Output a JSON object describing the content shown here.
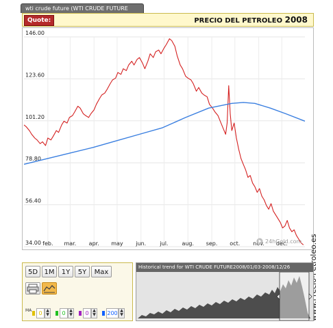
{
  "tab_label": "wti crude future (WTI CRUDE FUTURE",
  "quote_label": "Quote:",
  "page_title": "PRECIO DEL PETROLEO",
  "page_year": "2008",
  "watermark": "24hGold.com",
  "side_label": "www.Precio-Petroleo.es",
  "period_buttons": [
    "5D",
    "1M",
    "1Y",
    "5Y",
    "Max"
  ],
  "indicators": {
    "row_label": "MA",
    "values": [
      "0",
      "0",
      "0",
      "200"
    ],
    "colors": [
      "#e0c000",
      "#20c020",
      "#a020c0",
      "#1060ff"
    ]
  },
  "history": {
    "title": "Historical trend for WTI CRUDE FUTURE",
    "range": "2008/01/03-2008/12/26"
  },
  "chart_data": {
    "type": "line",
    "title": "PRECIO DEL PETROLEO 2008",
    "xlabel": "",
    "ylabel": "",
    "x_ticks": [
      "feb.",
      "mar.",
      "apr.",
      "may",
      "jun.",
      "jul.",
      "aug.",
      "sep.",
      "oct.",
      "nov.",
      "dec."
    ],
    "x_tick_days": [
      31,
      60,
      91,
      121,
      152,
      182,
      213,
      244,
      274,
      305,
      335
    ],
    "y_ticks": [
      34.0,
      56.4,
      78.8,
      101.2,
      123.6,
      146.0
    ],
    "ylim": [
      34.0,
      146.0
    ],
    "xlim": [
      0,
      365
    ],
    "grid": true,
    "series": [
      {
        "color": "#d42020",
        "x": [
          0,
          3,
          7,
          10,
          14,
          17,
          21,
          24,
          28,
          31,
          35,
          38,
          42,
          45,
          49,
          52,
          56,
          59,
          63,
          66,
          70,
          73,
          77,
          80,
          84,
          87,
          91,
          94,
          98,
          101,
          105,
          108,
          112,
          115,
          119,
          122,
          126,
          129,
          133,
          136,
          140,
          143,
          147,
          150,
          154,
          157,
          161,
          164,
          168,
          171,
          175,
          178,
          182,
          185,
          189,
          192,
          196,
          199,
          203,
          206,
          210,
          213,
          217,
          220,
          224,
          227,
          231,
          234,
          238,
          241,
          245,
          248,
          252,
          255,
          259,
          262,
          264,
          266,
          268,
          270,
          273,
          276,
          279,
          282,
          285,
          288,
          291,
          294,
          297,
          300,
          303,
          306,
          309,
          312,
          315,
          318,
          321,
          324,
          327,
          330,
          333,
          336,
          339,
          342,
          345,
          348,
          351,
          354,
          357,
          360,
          363
        ],
        "values": [
          99,
          98,
          96,
          94,
          92,
          91,
          89,
          90,
          88,
          92,
          91,
          93,
          96,
          95,
          99,
          101,
          100,
          103,
          104,
          106,
          109,
          108,
          105,
          104,
          103,
          105,
          107,
          110,
          113,
          115,
          116,
          118,
          121,
          123,
          124,
          127,
          126,
          129,
          128,
          131,
          133,
          131,
          134,
          135,
          132,
          129,
          133,
          137,
          135,
          138,
          139,
          137,
          140,
          142,
          145,
          144,
          141,
          136,
          131,
          129,
          125,
          124,
          123,
          121,
          117,
          119,
          116,
          115,
          114,
          110,
          108,
          106,
          104,
          101,
          97,
          94,
          100,
          120,
          105,
          96,
          100,
          92,
          86,
          81,
          78,
          75,
          71,
          72,
          68,
          66,
          63,
          65,
          61,
          59,
          56,
          54,
          57,
          53,
          51,
          49,
          47,
          44,
          45,
          48,
          44,
          42,
          43,
          40,
          38,
          36,
          35
        ]
      },
      {
        "color": "#3a7fe0",
        "x": [
          0,
          30,
          60,
          90,
          120,
          150,
          180,
          210,
          240,
          270,
          285,
          300,
          320,
          340,
          365
        ],
        "values": [
          78,
          81,
          84,
          87,
          90.5,
          94,
          97.5,
          103,
          108,
          110.5,
          111,
          110.5,
          108,
          105,
          101
        ]
      }
    ]
  }
}
